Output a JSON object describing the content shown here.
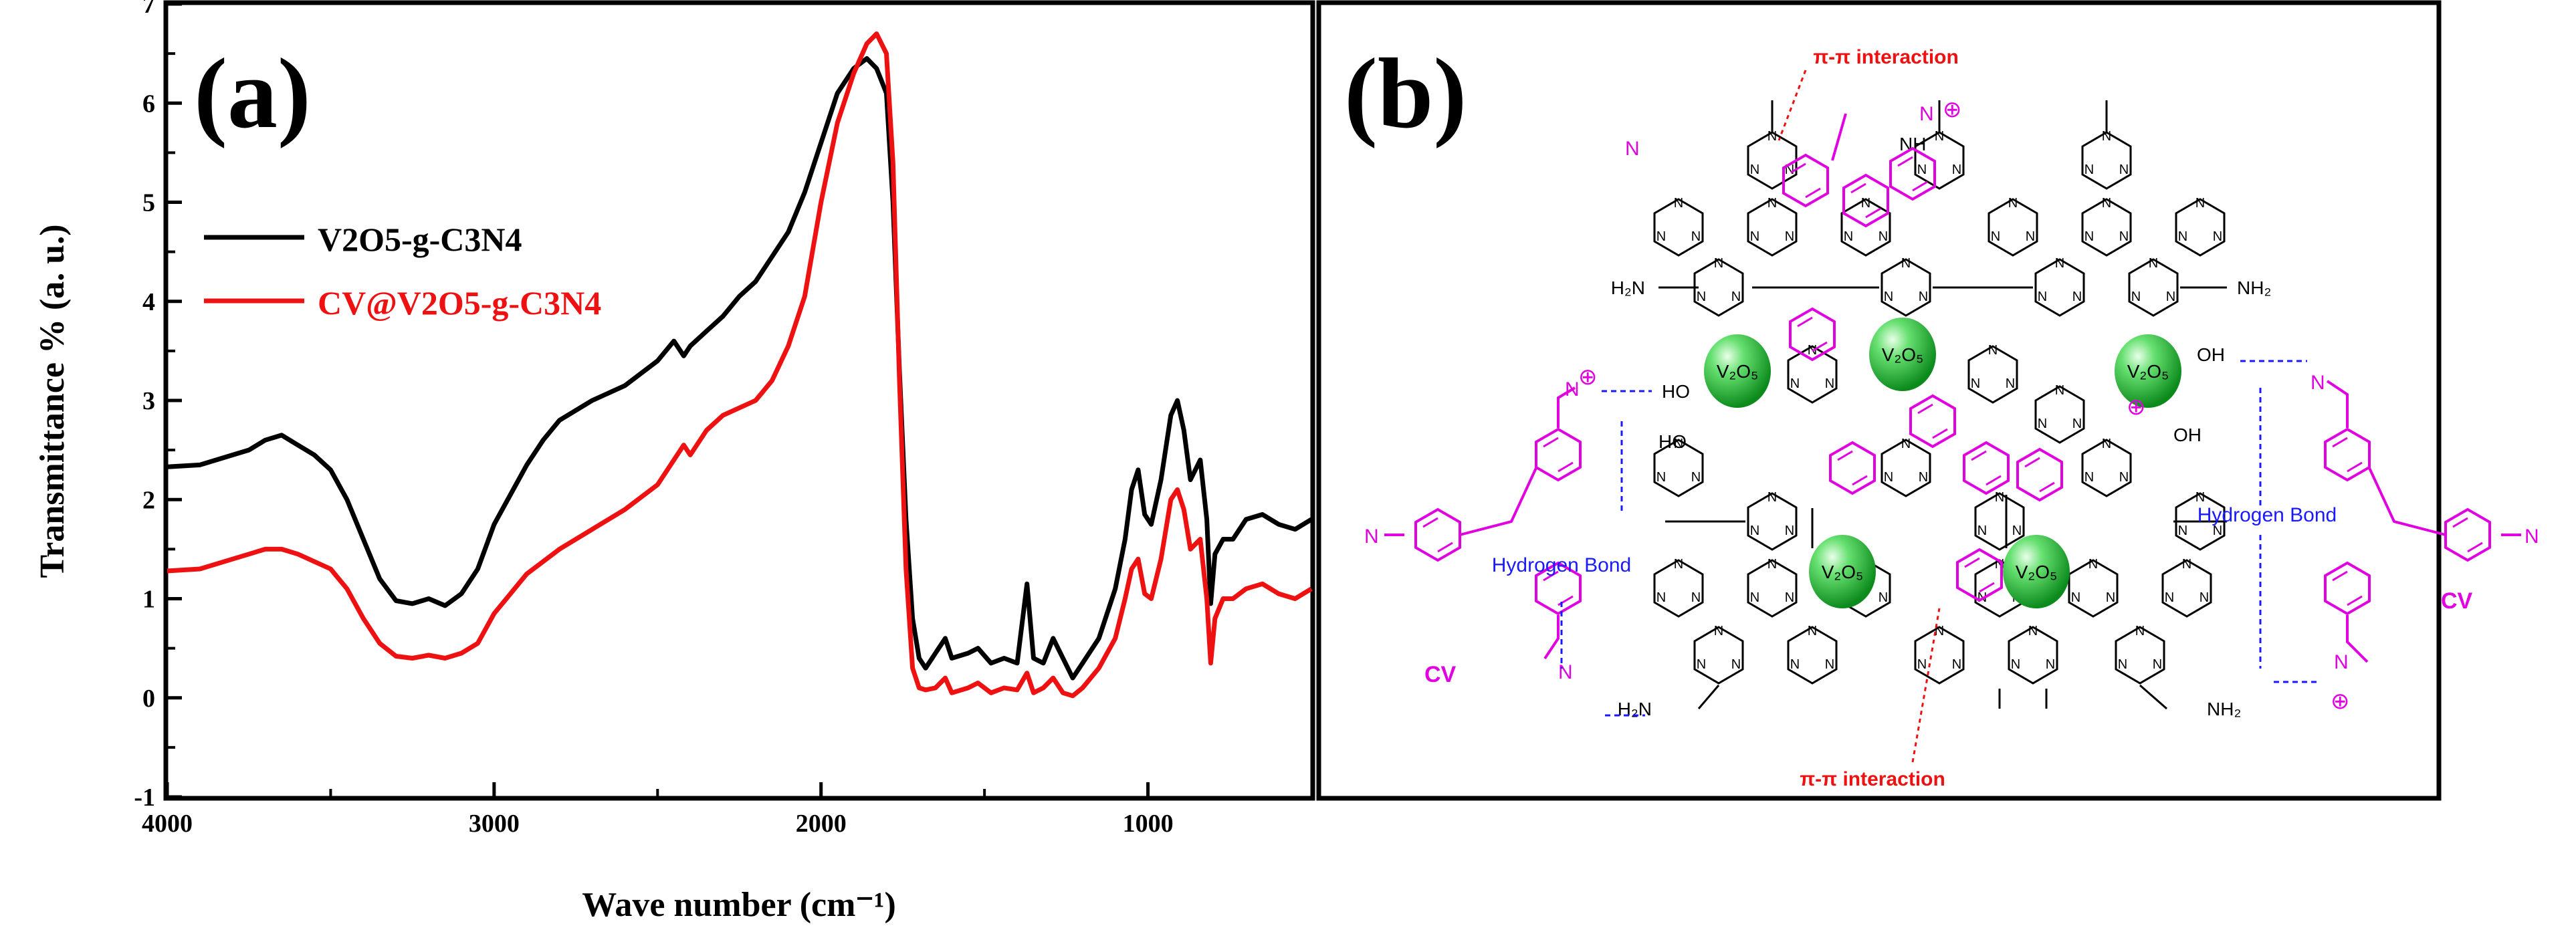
{
  "panel_a": {
    "letter": "(a)",
    "chart_data": {
      "type": "line",
      "xlabel": "Wave number (cm⁻¹)",
      "ylabel": "Transmittance % (a. u.)",
      "xlim": [
        4000,
        500
      ],
      "ylim": [
        -1,
        7
      ],
      "x_ticks": [
        4000,
        3000,
        2000,
        1000
      ],
      "y_ticks": [
        -1,
        0,
        1,
        2,
        3,
        4,
        5,
        6,
        7
      ],
      "legend_position": "upper-left",
      "series": [
        {
          "name": "V2O5-g-C3N4",
          "color": "#000000",
          "points": [
            [
              4000,
              2.33
            ],
            [
              3900,
              2.35
            ],
            [
              3800,
              2.45
            ],
            [
              3750,
              2.5
            ],
            [
              3700,
              2.6
            ],
            [
              3650,
              2.65
            ],
            [
              3600,
              2.55
            ],
            [
              3550,
              2.45
            ],
            [
              3500,
              2.3
            ],
            [
              3450,
              2.0
            ],
            [
              3400,
              1.6
            ],
            [
              3350,
              1.2
            ],
            [
              3300,
              0.98
            ],
            [
              3250,
              0.95
            ],
            [
              3200,
              1.0
            ],
            [
              3150,
              0.93
            ],
            [
              3100,
              1.05
            ],
            [
              3050,
              1.3
            ],
            [
              3000,
              1.75
            ],
            [
              2950,
              2.05
            ],
            [
              2900,
              2.35
            ],
            [
              2850,
              2.6
            ],
            [
              2800,
              2.8
            ],
            [
              2700,
              3.0
            ],
            [
              2600,
              3.15
            ],
            [
              2500,
              3.4
            ],
            [
              2450,
              3.6
            ],
            [
              2420,
              3.45
            ],
            [
              2400,
              3.55
            ],
            [
              2350,
              3.7
            ],
            [
              2300,
              3.85
            ],
            [
              2250,
              4.05
            ],
            [
              2200,
              4.2
            ],
            [
              2150,
              4.45
            ],
            [
              2100,
              4.7
            ],
            [
              2050,
              5.1
            ],
            [
              2000,
              5.6
            ],
            [
              1950,
              6.1
            ],
            [
              1900,
              6.35
            ],
            [
              1860,
              6.45
            ],
            [
              1830,
              6.35
            ],
            [
              1800,
              6.1
            ],
            [
              1780,
              5.0
            ],
            [
              1760,
              3.3
            ],
            [
              1740,
              1.8
            ],
            [
              1720,
              0.8
            ],
            [
              1700,
              0.4
            ],
            [
              1680,
              0.3
            ],
            [
              1650,
              0.45
            ],
            [
              1620,
              0.6
            ],
            [
              1600,
              0.4
            ],
            [
              1550,
              0.45
            ],
            [
              1520,
              0.5
            ],
            [
              1480,
              0.35
            ],
            [
              1440,
              0.4
            ],
            [
              1400,
              0.35
            ],
            [
              1370,
              1.15
            ],
            [
              1350,
              0.4
            ],
            [
              1320,
              0.35
            ],
            [
              1290,
              0.6
            ],
            [
              1260,
              0.4
            ],
            [
              1230,
              0.2
            ],
            [
              1200,
              0.35
            ],
            [
              1150,
              0.6
            ],
            [
              1100,
              1.1
            ],
            [
              1070,
              1.6
            ],
            [
              1050,
              2.1
            ],
            [
              1030,
              2.3
            ],
            [
              1010,
              1.85
            ],
            [
              990,
              1.75
            ],
            [
              960,
              2.2
            ],
            [
              930,
              2.85
            ],
            [
              910,
              3.0
            ],
            [
              890,
              2.7
            ],
            [
              870,
              2.2
            ],
            [
              840,
              2.4
            ],
            [
              820,
              1.8
            ],
            [
              808,
              0.95
            ],
            [
              795,
              1.45
            ],
            [
              770,
              1.6
            ],
            [
              740,
              1.6
            ],
            [
              700,
              1.8
            ],
            [
              650,
              1.85
            ],
            [
              600,
              1.75
            ],
            [
              550,
              1.7
            ],
            [
              500,
              1.8
            ]
          ]
        },
        {
          "name": "CV@V2O5-g-C3N4",
          "color": "#ee1111",
          "points": [
            [
              4000,
              1.28
            ],
            [
              3900,
              1.3
            ],
            [
              3800,
              1.4
            ],
            [
              3700,
              1.5
            ],
            [
              3650,
              1.5
            ],
            [
              3600,
              1.45
            ],
            [
              3500,
              1.3
            ],
            [
              3450,
              1.1
            ],
            [
              3400,
              0.8
            ],
            [
              3350,
              0.55
            ],
            [
              3300,
              0.42
            ],
            [
              3250,
              0.4
            ],
            [
              3200,
              0.43
            ],
            [
              3150,
              0.4
            ],
            [
              3100,
              0.45
            ],
            [
              3050,
              0.55
            ],
            [
              3000,
              0.85
            ],
            [
              2950,
              1.05
            ],
            [
              2900,
              1.25
            ],
            [
              2800,
              1.5
            ],
            [
              2700,
              1.7
            ],
            [
              2600,
              1.9
            ],
            [
              2500,
              2.15
            ],
            [
              2420,
              2.55
            ],
            [
              2400,
              2.45
            ],
            [
              2350,
              2.7
            ],
            [
              2300,
              2.85
            ],
            [
              2200,
              3.0
            ],
            [
              2150,
              3.2
            ],
            [
              2100,
              3.55
            ],
            [
              2050,
              4.05
            ],
            [
              2000,
              5.0
            ],
            [
              1950,
              5.8
            ],
            [
              1900,
              6.3
            ],
            [
              1860,
              6.6
            ],
            [
              1830,
              6.7
            ],
            [
              1800,
              6.5
            ],
            [
              1780,
              5.4
            ],
            [
              1760,
              3.2
            ],
            [
              1740,
              1.3
            ],
            [
              1720,
              0.3
            ],
            [
              1700,
              0.1
            ],
            [
              1680,
              0.08
            ],
            [
              1650,
              0.1
            ],
            [
              1620,
              0.2
            ],
            [
              1600,
              0.05
            ],
            [
              1550,
              0.1
            ],
            [
              1520,
              0.15
            ],
            [
              1480,
              0.05
            ],
            [
              1440,
              0.1
            ],
            [
              1400,
              0.08
            ],
            [
              1370,
              0.25
            ],
            [
              1350,
              0.05
            ],
            [
              1320,
              0.1
            ],
            [
              1290,
              0.2
            ],
            [
              1260,
              0.05
            ],
            [
              1230,
              0.02
            ],
            [
              1200,
              0.1
            ],
            [
              1150,
              0.3
            ],
            [
              1100,
              0.6
            ],
            [
              1070,
              1.0
            ],
            [
              1050,
              1.3
            ],
            [
              1030,
              1.4
            ],
            [
              1010,
              1.05
            ],
            [
              990,
              1.0
            ],
            [
              960,
              1.4
            ],
            [
              930,
              2.0
            ],
            [
              910,
              2.1
            ],
            [
              890,
              1.9
            ],
            [
              870,
              1.5
            ],
            [
              840,
              1.6
            ],
            [
              820,
              1.0
            ],
            [
              808,
              0.35
            ],
            [
              795,
              0.8
            ],
            [
              770,
              1.0
            ],
            [
              740,
              1.0
            ],
            [
              700,
              1.1
            ],
            [
              650,
              1.15
            ],
            [
              600,
              1.05
            ],
            [
              550,
              1.0
            ],
            [
              500,
              1.1
            ]
          ]
        }
      ]
    }
  },
  "panel_b": {
    "letter": "(b)",
    "labels": {
      "pi_top": "π-π interaction",
      "pi_bottom": "π-π interaction",
      "hbond_left": "Hydrogen Bond",
      "hbond_right": "Hydrogen Bond",
      "cv_left": "CV",
      "cv_right": "CV",
      "nh2": "H₂N",
      "nh2_r": "NH₂",
      "nh": "NH",
      "oh": "OH",
      "ho": "HO",
      "plus": "⊕",
      "n": "N",
      "v2o5": "V₂O₅"
    },
    "colors": {
      "cv": "#e000e0",
      "pi": "#ee1111",
      "hbond": "#1a1aff",
      "sphere": "#22bb33"
    }
  }
}
